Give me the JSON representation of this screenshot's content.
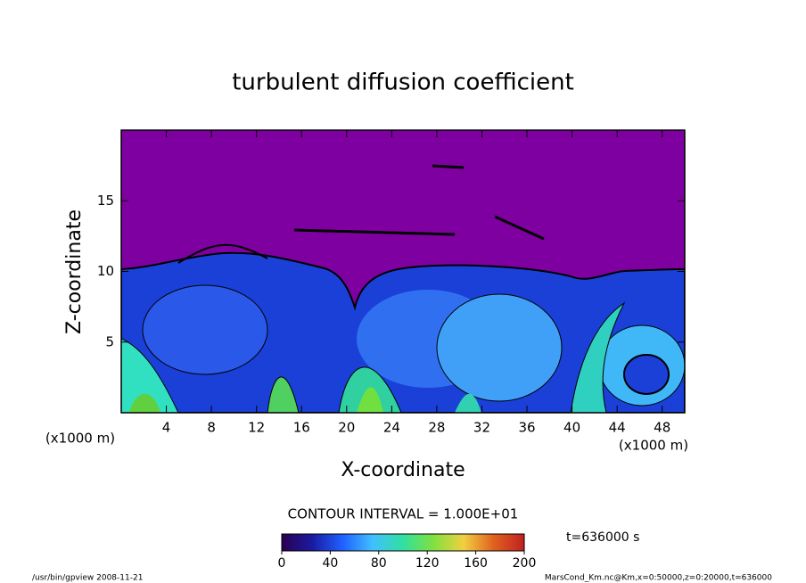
{
  "chart_data": {
    "type": "contour",
    "title": "turbulent diffusion coefficient",
    "x_label": "X-coordinate",
    "y_label": "Z-coordinate",
    "x_unit": "(x1000 m)",
    "y_unit": "(x1000 m)",
    "xlim": [
      0,
      50
    ],
    "xticks": [
      4,
      8,
      12,
      16,
      20,
      24,
      28,
      32,
      36,
      40,
      44,
      48
    ],
    "ylim": [
      0,
      20
    ],
    "yticks": [
      5,
      10,
      15
    ],
    "contour_interval": "CONTOUR INTERVAL = 1.000E+01",
    "colorbar": {
      "lim": [
        0,
        200
      ],
      "ticks": [
        0,
        40,
        80,
        120,
        160,
        200
      ],
      "colors": [
        "#2a0050",
        "#1a1aa0",
        "#2060ff",
        "#40c0ff",
        "#30e0a0",
        "#80e040",
        "#f0d040",
        "#e06020",
        "#c02020"
      ]
    },
    "time_label": "t=636000 s",
    "footer_left": "/usr/bin/gpview   2008-11-21",
    "footer_right": "MarsCond_Km.nc@Km,x=0:50000,z=0:20000,t=636000"
  }
}
